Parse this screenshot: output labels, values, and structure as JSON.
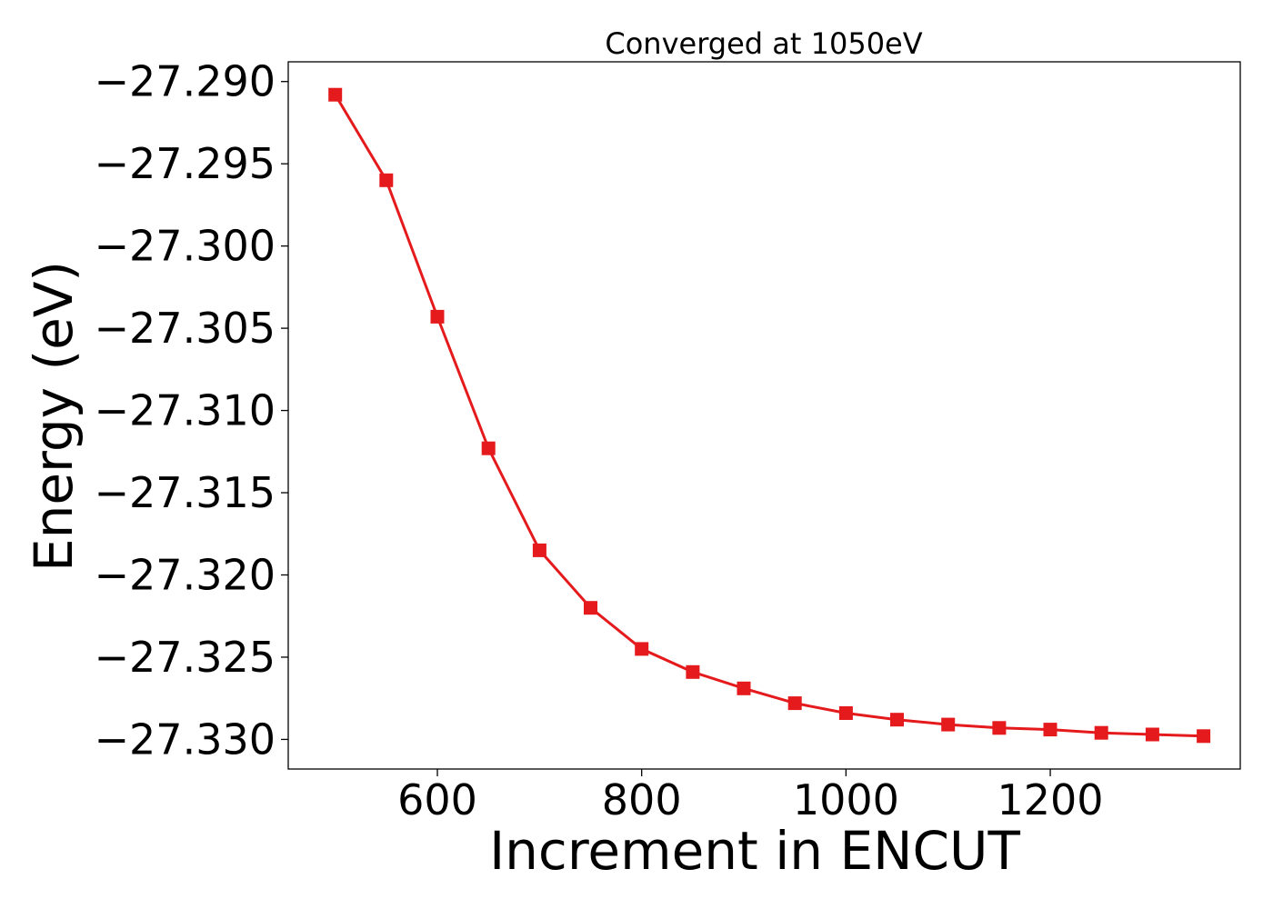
{
  "chart_data": {
    "type": "line",
    "title": "Converged at 1050eV",
    "xlabel": "Increment in ENCUT",
    "ylabel": "Energy (eV)",
    "x": [
      500,
      550,
      600,
      650,
      700,
      750,
      800,
      850,
      900,
      950,
      1000,
      1050,
      1100,
      1150,
      1200,
      1250,
      1300,
      1350
    ],
    "series": [
      {
        "values": [
          -27.2908,
          -27.296,
          -27.3043,
          -27.3123,
          -27.3185,
          -27.322,
          -27.3245,
          -27.3259,
          -27.3269,
          -27.3278,
          -27.3284,
          -27.3288,
          -27.3291,
          -27.3293,
          -27.3294,
          -27.3296,
          -27.3297,
          -27.3298
        ],
        "color": "#e41a1c",
        "marker": "square"
      }
    ],
    "xlim": [
      454,
      1386
    ],
    "ylim": [
      -27.3318,
      -27.2888
    ],
    "xticks": [
      600,
      800,
      1000,
      1200
    ],
    "xtick_labels": [
      "600",
      "800",
      "1000",
      "1200"
    ],
    "yticks": [
      -27.29,
      -27.295,
      -27.3,
      -27.305,
      -27.31,
      -27.315,
      -27.32,
      -27.325,
      -27.33
    ],
    "ytick_labels": [
      "−27.290",
      "−27.295",
      "−27.300",
      "−27.305",
      "−27.310",
      "−27.315",
      "−27.320",
      "−27.325",
      "−27.330"
    ],
    "grid": false
  }
}
